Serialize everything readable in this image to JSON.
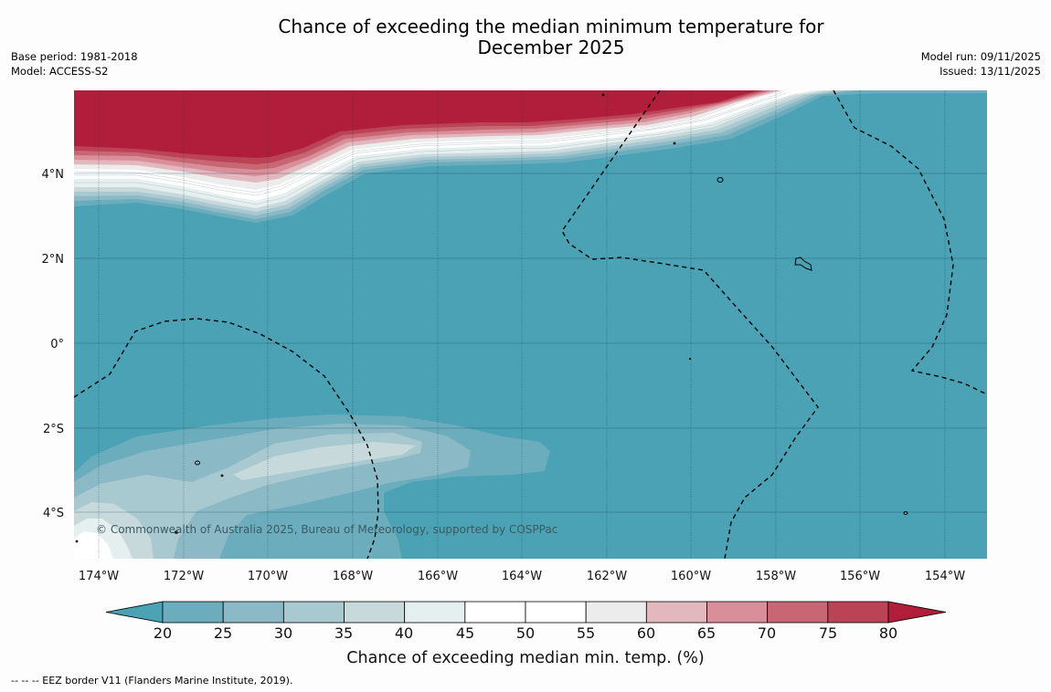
{
  "title": {
    "line1": "Chance of exceeding the median minimum temperature for",
    "line2": "December 2025"
  },
  "meta_left": {
    "base_period": "Base period: 1981-2018",
    "model": "Model: ACCESS-S2"
  },
  "meta_right": {
    "model_run": "Model run: 09/11/2025",
    "issued": "Issued: 13/11/2025"
  },
  "map": {
    "lon_ticks": [
      "174°W",
      "172°W",
      "170°W",
      "168°W",
      "166°W",
      "164°W",
      "162°W",
      "160°W",
      "158°W",
      "156°W",
      "154°W"
    ],
    "lat_ticks": [
      "4°N",
      "2°N",
      "0°",
      "2°S",
      "4°S"
    ],
    "copyright": "© Commonwealth of Australia 2025, Bureau of Meteorology, supported by COSPPac"
  },
  "colorbar": {
    "ticks": [
      "20",
      "25",
      "30",
      "35",
      "40",
      "45",
      "50",
      "55",
      "60",
      "65",
      "70",
      "75",
      "80"
    ],
    "label": "Chance of exceeding median min. temp. (%)",
    "colors": {
      "below": "#4aa2b4",
      "bins": [
        "#6cadbd",
        "#8bbac6",
        "#a9c9d0",
        "#c8d9dc",
        "#e6eff0",
        "#ffffff",
        "#ffffff",
        "#ececec",
        "#e2b7bd",
        "#d88f99",
        "#c96673",
        "#bb4356"
      ],
      "above": "#b11e3b"
    }
  },
  "legend_footer": "-- -- -- EEZ border V11 (Flanders Marine Institute, 2019)."
}
